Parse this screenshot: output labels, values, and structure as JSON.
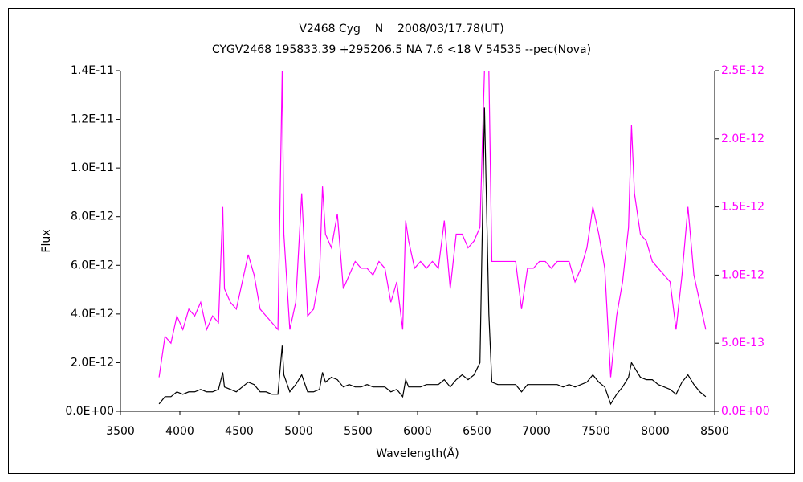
{
  "chart_data": {
    "type": "line",
    "title": "V2468 Cyg    N    2008/03/17.78(UT)",
    "subtitle": "CYGV2468 195833.39 +295206.5 NA 7.6 <18 V 54535 --pec(Nova)",
    "xlabel": "Wavelength(Å)",
    "ylabel": "Flux",
    "xlim": [
      3500,
      8500
    ],
    "xticks": [
      3500,
      4000,
      4500,
      5000,
      5500,
      6000,
      6500,
      7000,
      7500,
      8000,
      8500
    ],
    "ylim": [
      0,
      1.4e-11
    ],
    "yticks": [
      {
        "value": 0,
        "label": "0.0E+00"
      },
      {
        "value": 2e-12,
        "label": "2.0E-12"
      },
      {
        "value": 4e-12,
        "label": "4.0E-12"
      },
      {
        "value": 6e-12,
        "label": "6.0E-12"
      },
      {
        "value": 8e-12,
        "label": "8.0E-12"
      },
      {
        "value": 1e-11,
        "label": "1.0E-11"
      },
      {
        "value": 1.2e-11,
        "label": "1.2E-11"
      },
      {
        "value": 1.4e-11,
        "label": "1.4E-11"
      }
    ],
    "y2lim": [
      0,
      2.5e-12
    ],
    "y2ticks": [
      {
        "value": 0,
        "label": "0.0E+00"
      },
      {
        "value": 5e-13,
        "label": "5.0E-13"
      },
      {
        "value": 1e-12,
        "label": "1.0E-12"
      },
      {
        "value": 1.5e-12,
        "label": "1.5E-12"
      },
      {
        "value": 2e-12,
        "label": "2.0E-12"
      },
      {
        "value": 2.5e-12,
        "label": "2.5E-12"
      }
    ],
    "x": [
      3825,
      3875,
      3925,
      3975,
      4025,
      4075,
      4125,
      4175,
      4225,
      4275,
      4325,
      4361,
      4375,
      4425,
      4475,
      4525,
      4575,
      4625,
      4675,
      4725,
      4775,
      4825,
      4861,
      4875,
      4925,
      4975,
      5025,
      5075,
      5125,
      5175,
      5200,
      5225,
      5275,
      5325,
      5375,
      5425,
      5475,
      5525,
      5575,
      5625,
      5675,
      5725,
      5775,
      5825,
      5875,
      5900,
      5925,
      5975,
      6025,
      6075,
      6125,
      6175,
      6225,
      6275,
      6325,
      6375,
      6425,
      6475,
      6525,
      6563,
      6600,
      6625,
      6675,
      6725,
      6775,
      6825,
      6875,
      6925,
      6975,
      7025,
      7075,
      7125,
      7175,
      7225,
      7275,
      7325,
      7375,
      7425,
      7475,
      7525,
      7575,
      7625,
      7675,
      7725,
      7775,
      7800,
      7825,
      7875,
      7925,
      7975,
      8025,
      8075,
      8125,
      8175,
      8225,
      8275,
      8325,
      8375,
      8425
    ],
    "series": [
      {
        "color": "#000000",
        "values": [
          3e-13,
          6e-13,
          6e-13,
          8e-13,
          7e-13,
          8e-13,
          8e-13,
          9e-13,
          8e-13,
          8e-13,
          9e-13,
          1.6e-12,
          1e-12,
          9e-13,
          8e-13,
          1e-12,
          1.2e-12,
          1.1e-12,
          8e-13,
          8e-13,
          7e-13,
          7e-13,
          2.7e-12,
          1.5e-12,
          8e-13,
          1.1e-12,
          1.5e-12,
          8e-13,
          8e-13,
          9e-13,
          1.6e-12,
          1.2e-12,
          1.4e-12,
          1.3e-12,
          1e-12,
          1.1e-12,
          1e-12,
          1e-12,
          1.1e-12,
          1e-12,
          1e-12,
          1e-12,
          8e-13,
          9e-13,
          6e-13,
          1.3e-12,
          1e-12,
          1e-12,
          1e-12,
          1.1e-12,
          1.1e-12,
          1.1e-12,
          1.3e-12,
          1e-12,
          1.3e-12,
          1.5e-12,
          1.3e-12,
          1.5e-12,
          2e-12,
          1.25e-11,
          4e-12,
          1.2e-12,
          1.1e-12,
          1.1e-12,
          1.1e-12,
          1.1e-12,
          8e-13,
          1.1e-12,
          1.1e-12,
          1.1e-12,
          1.1e-12,
          1.1e-12,
          1.1e-12,
          1e-12,
          1.1e-12,
          1e-12,
          1.1e-12,
          1.2e-12,
          1.5e-12,
          1.2e-12,
          1e-12,
          3e-13,
          7e-13,
          1e-12,
          1.4e-12,
          2e-12,
          1.8e-12,
          1.4e-12,
          1.3e-12,
          1.3e-12,
          1.1e-12,
          1e-12,
          9e-13,
          7e-13,
          1.2e-12,
          1.5e-12,
          1.1e-12,
          8e-13,
          6e-13
        ]
      },
      {
        "color": "#ff00ff",
        "axis": "y2",
        "values": [
          2.5e-13,
          5.5e-13,
          5e-13,
          7e-13,
          6e-13,
          7.5e-13,
          7e-13,
          8e-13,
          6e-13,
          7e-13,
          6.5e-13,
          1.5e-12,
          9e-13,
          8e-13,
          7.5e-13,
          9.5e-13,
          1.15e-12,
          1e-12,
          7.5e-13,
          7e-13,
          6.5e-13,
          6e-13,
          2.5e-12,
          1.3e-12,
          6e-13,
          8e-13,
          1.6e-12,
          7e-13,
          7.5e-13,
          1e-12,
          1.65e-12,
          1.3e-12,
          1.2e-12,
          1.45e-12,
          9e-13,
          1e-12,
          1.1e-12,
          1.05e-12,
          1.05e-12,
          1e-12,
          1.1e-12,
          1.05e-12,
          8e-13,
          9.5e-13,
          6e-13,
          1.4e-12,
          1.25e-12,
          1.05e-12,
          1.1e-12,
          1.05e-12,
          1.1e-12,
          1.05e-12,
          1.4e-12,
          9e-13,
          1.3e-12,
          1.3e-12,
          1.2e-12,
          1.25e-12,
          1.35e-12,
          2.5e-12,
          2.5e-12,
          1.1e-12,
          1.1e-12,
          1.1e-12,
          1.1e-12,
          1.1e-12,
          7.5e-13,
          1.05e-12,
          1.05e-12,
          1.1e-12,
          1.1e-12,
          1.05e-12,
          1.1e-12,
          1.1e-12,
          1.1e-12,
          9.5e-13,
          1.05e-12,
          1.2e-12,
          1.5e-12,
          1.3e-12,
          1.05e-12,
          2.5e-13,
          7e-13,
          9.5e-13,
          1.35e-12,
          2.1e-12,
          1.6e-12,
          1.3e-12,
          1.25e-12,
          1.1e-12,
          1.05e-12,
          1e-12,
          9.5e-13,
          6e-13,
          1e-12,
          1.5e-12,
          1e-12,
          8e-13,
          6e-13
        ]
      }
    ]
  }
}
